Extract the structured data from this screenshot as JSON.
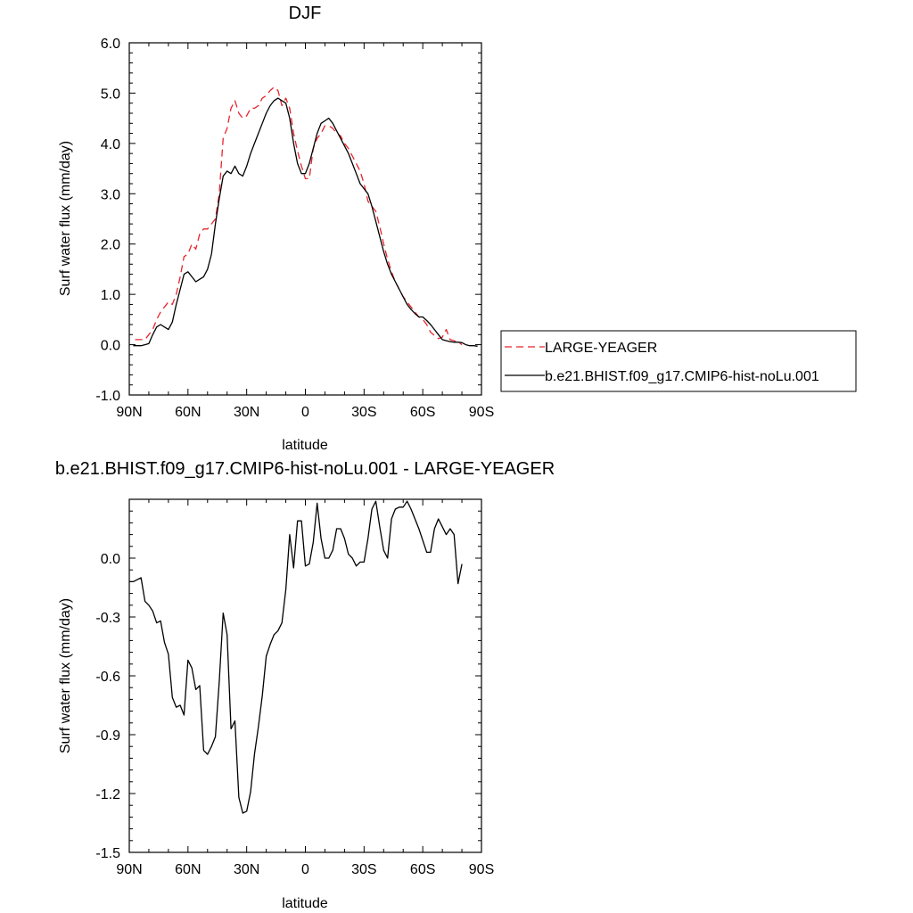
{
  "chart_data": [
    {
      "type": "line",
      "title": "DJF",
      "xlabel": "latitude",
      "ylabel": "Surf water flux (mm/day)",
      "xlim": [
        -90,
        90
      ],
      "ylim": [
        -1.0,
        6.0
      ],
      "x_ticks": [
        -90,
        -60,
        -30,
        0,
        30,
        60,
        90
      ],
      "x_tick_labels": [
        "90N",
        "60N",
        "30N",
        "0",
        "30S",
        "60S",
        "90S"
      ],
      "y_ticks": [
        -1,
        0,
        1,
        2,
        3,
        4,
        5,
        6
      ],
      "y_tick_labels": [
        "-1.0",
        "0.0",
        "1.0",
        "2.0",
        "3.0",
        "4.0",
        "5.0",
        "6.0"
      ],
      "legend_position": "right",
      "series": [
        {
          "name": "LARGE-YEAGER",
          "color": "#e8242c",
          "dash": "dashed",
          "x": [
            -87,
            -84,
            -82,
            -80,
            -78,
            -76,
            -74,
            -72,
            -70,
            -68,
            -66,
            -64,
            -62,
            -60,
            -58,
            -56,
            -54,
            -52,
            -50,
            -48,
            -46,
            -44,
            -42,
            -40,
            -38,
            -36,
            -34,
            -32,
            -30,
            -28,
            -26,
            -24,
            -22,
            -20,
            -18,
            -16,
            -14,
            -12,
            -10,
            -8,
            -6,
            -4,
            -2,
            0,
            2,
            4,
            6,
            8,
            10,
            12,
            14,
            16,
            18,
            20,
            22,
            24,
            26,
            28,
            30,
            32,
            34,
            36,
            38,
            40,
            42,
            44,
            46,
            48,
            50,
            52,
            54,
            56,
            58,
            60,
            62,
            64,
            66,
            68,
            70,
            72,
            74,
            76,
            78,
            80
          ],
          "y": [
            0.1,
            0.1,
            0.1,
            0.2,
            0.3,
            0.5,
            0.65,
            0.75,
            0.85,
            0.8,
            1.0,
            1.35,
            1.75,
            1.8,
            2.0,
            1.9,
            2.2,
            2.3,
            2.3,
            2.4,
            2.5,
            3.0,
            4.1,
            4.3,
            4.7,
            4.85,
            4.6,
            4.5,
            4.55,
            4.7,
            4.7,
            4.75,
            4.9,
            4.95,
            5.05,
            5.12,
            5.05,
            4.75,
            4.9,
            4.7,
            4.2,
            3.85,
            3.55,
            3.3,
            3.3,
            3.9,
            4.1,
            4.2,
            4.35,
            4.35,
            4.3,
            4.2,
            4.15,
            4.0,
            3.9,
            3.75,
            3.6,
            3.45,
            3.2,
            2.85,
            2.75,
            2.65,
            2.35,
            2.0,
            1.7,
            1.45,
            1.25,
            1.1,
            0.95,
            0.85,
            0.75,
            0.65,
            0.55,
            0.5,
            0.4,
            0.25,
            0.18,
            0.12,
            0.15,
            0.3,
            0.1,
            0.08,
            0.05,
            0.0
          ]
        },
        {
          "name": "b.e21.BHIST.f09_g17.CMIP6-hist-noLu.001",
          "color": "#000000",
          "dash": "solid",
          "x": [
            -88,
            -84,
            -82,
            -80,
            -78,
            -76,
            -74,
            -72,
            -70,
            -68,
            -66,
            -64,
            -62,
            -60,
            -58,
            -56,
            -54,
            -52,
            -50,
            -48,
            -46,
            -44,
            -42,
            -40,
            -38,
            -36,
            -34,
            -32,
            -30,
            -28,
            -26,
            -24,
            -22,
            -20,
            -18,
            -16,
            -14,
            -12,
            -10,
            -8,
            -6,
            -4,
            -2,
            0,
            2,
            4,
            6,
            8,
            10,
            12,
            14,
            16,
            18,
            20,
            22,
            24,
            26,
            28,
            30,
            32,
            34,
            36,
            38,
            40,
            42,
            44,
            46,
            48,
            50,
            52,
            54,
            56,
            58,
            60,
            62,
            64,
            66,
            68,
            70,
            72,
            74,
            76,
            78,
            80,
            82,
            84,
            86,
            88
          ],
          "y": [
            -0.02,
            -0.02,
            0.0,
            0.02,
            0.2,
            0.35,
            0.4,
            0.35,
            0.3,
            0.45,
            0.8,
            1.1,
            1.4,
            1.45,
            1.35,
            1.25,
            1.3,
            1.35,
            1.5,
            1.8,
            2.4,
            2.9,
            3.35,
            3.45,
            3.4,
            3.55,
            3.4,
            3.35,
            3.55,
            3.8,
            4.0,
            4.2,
            4.4,
            4.6,
            4.75,
            4.85,
            4.9,
            4.85,
            4.8,
            4.5,
            4.0,
            3.6,
            3.4,
            3.4,
            3.6,
            3.9,
            4.2,
            4.4,
            4.45,
            4.5,
            4.4,
            4.25,
            4.1,
            3.95,
            3.8,
            3.6,
            3.4,
            3.2,
            3.1,
            3.0,
            2.75,
            2.45,
            2.15,
            1.85,
            1.6,
            1.4,
            1.25,
            1.1,
            0.95,
            0.8,
            0.7,
            0.62,
            0.55,
            0.55,
            0.48,
            0.4,
            0.3,
            0.2,
            0.1,
            0.08,
            0.06,
            0.05,
            0.05,
            0.04,
            0.0,
            -0.02,
            -0.02,
            -0.03
          ]
        }
      ]
    },
    {
      "type": "line",
      "title": "b.e21.BHIST.f09_g17.CMIP6-hist-noLu.001 - LARGE-YEAGER",
      "xlabel": "latitude",
      "ylabel": "Surf water flux (mm/day)",
      "xlim": [
        -90,
        90
      ],
      "ylim": [
        -1.5,
        0.3
      ],
      "x_ticks": [
        -90,
        -60,
        -30,
        0,
        30,
        60,
        90
      ],
      "x_tick_labels": [
        "90N",
        "60N",
        "30N",
        "0",
        "30S",
        "60S",
        "90S"
      ],
      "y_ticks": [
        -1.5,
        -1.2,
        -0.9,
        -0.6,
        -0.3,
        0.0
      ],
      "y_tick_labels": [
        "-1.5",
        "-1.2",
        "-0.9",
        "-0.6",
        "-0.3",
        "0.0"
      ],
      "series": [
        {
          "name": "",
          "color": "#000000",
          "dash": "solid",
          "x": [
            -90,
            -88,
            -86,
            -84,
            -82,
            -80,
            -78,
            -76,
            -74,
            -72,
            -70,
            -68,
            -66,
            -64,
            -62,
            -60,
            -58,
            -56,
            -54,
            -52,
            -50,
            -48,
            -46,
            -44,
            -42,
            -40,
            -38,
            -36,
            -34,
            -32,
            -30,
            -28,
            -26,
            -24,
            -22,
            -20,
            -18,
            -16,
            -14,
            -12,
            -10,
            -8,
            -6,
            -4,
            -2,
            0,
            2,
            4,
            6,
            8,
            10,
            12,
            14,
            16,
            18,
            20,
            22,
            24,
            26,
            28,
            30,
            32,
            34,
            36,
            38,
            40,
            42,
            44,
            46,
            48,
            50,
            52,
            54,
            56,
            58,
            60,
            62,
            64,
            66,
            68,
            70,
            72,
            74,
            76,
            78,
            80
          ],
          "y": [
            -0.12,
            -0.12,
            -0.11,
            -0.1,
            -0.22,
            -0.24,
            -0.27,
            -0.33,
            -0.32,
            -0.43,
            -0.49,
            -0.71,
            -0.76,
            -0.75,
            -0.8,
            -0.52,
            -0.56,
            -0.67,
            -0.65,
            -0.98,
            -1.0,
            -0.96,
            -0.91,
            -0.63,
            -0.28,
            -0.39,
            -0.87,
            -0.83,
            -1.22,
            -1.3,
            -1.29,
            -1.19,
            -1.0,
            -0.86,
            -0.7,
            -0.5,
            -0.44,
            -0.39,
            -0.37,
            -0.33,
            -0.16,
            0.12,
            -0.05,
            0.19,
            0.19,
            -0.04,
            -0.03,
            0.08,
            0.28,
            0.1,
            0.0,
            0.0,
            0.04,
            0.15,
            0.15,
            0.1,
            0.02,
            0.0,
            -0.04,
            -0.02,
            -0.02,
            0.1,
            0.25,
            0.29,
            0.16,
            0.04,
            0.0,
            0.2,
            0.25,
            0.26,
            0.26,
            0.29,
            0.25,
            0.2,
            0.15,
            0.09,
            0.03,
            0.03,
            0.15,
            0.2,
            0.16,
            0.12,
            0.15,
            0.12,
            -0.13,
            -0.03
          ]
        }
      ]
    }
  ]
}
